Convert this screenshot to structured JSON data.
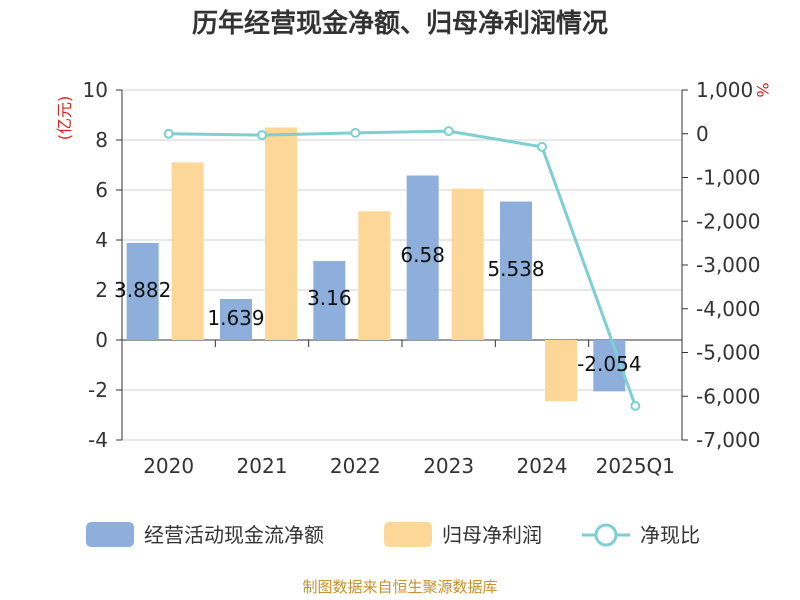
{
  "chart_data": {
    "type": "bar",
    "title": "历年经营现金净额、归母净利润情况",
    "categories": [
      "2020",
      "2021",
      "2022",
      "2023",
      "2024",
      "2025Q1"
    ],
    "y_left": {
      "unit": "(亿元)",
      "ylim": [
        -4,
        10
      ],
      "ticks": [
        -4,
        -2,
        0,
        2,
        4,
        6,
        8,
        10
      ]
    },
    "y_right": {
      "unit": "%",
      "ylim": [
        -7000,
        1000
      ],
      "ticks": [
        1000,
        0,
        -1000,
        -2000,
        -3000,
        -4000,
        -5000,
        -6000,
        -7000
      ],
      "tick_labels": [
        "1,000",
        "0",
        "-1,000",
        "-2,000",
        "-3,000",
        "-4,000",
        "-5,000",
        "-6,000",
        "-7,000"
      ]
    },
    "series": [
      {
        "name": "经营活动现金流净额",
        "kind": "bar",
        "axis": "left",
        "color": "#8eaedb",
        "values": [
          3.882,
          1.639,
          3.16,
          6.58,
          5.538,
          -2.054
        ],
        "labels": [
          "3.882",
          "1.639",
          "3.16",
          "6.58",
          "5.538",
          "-2.054"
        ]
      },
      {
        "name": "归母净利润",
        "kind": "bar",
        "axis": "left",
        "color": "#fdd797",
        "values": [
          7.1,
          8.5,
          5.15,
          6.05,
          -2.45,
          0.0
        ]
      },
      {
        "name": "净现比",
        "kind": "line",
        "axis": "right",
        "color": "#7ecfd3",
        "values": [
          0,
          -30,
          20,
          60,
          -300,
          -6220
        ]
      }
    ],
    "grid": true,
    "legend_position": "bottom"
  },
  "source_note": "制图数据来自恒生聚源数据库"
}
